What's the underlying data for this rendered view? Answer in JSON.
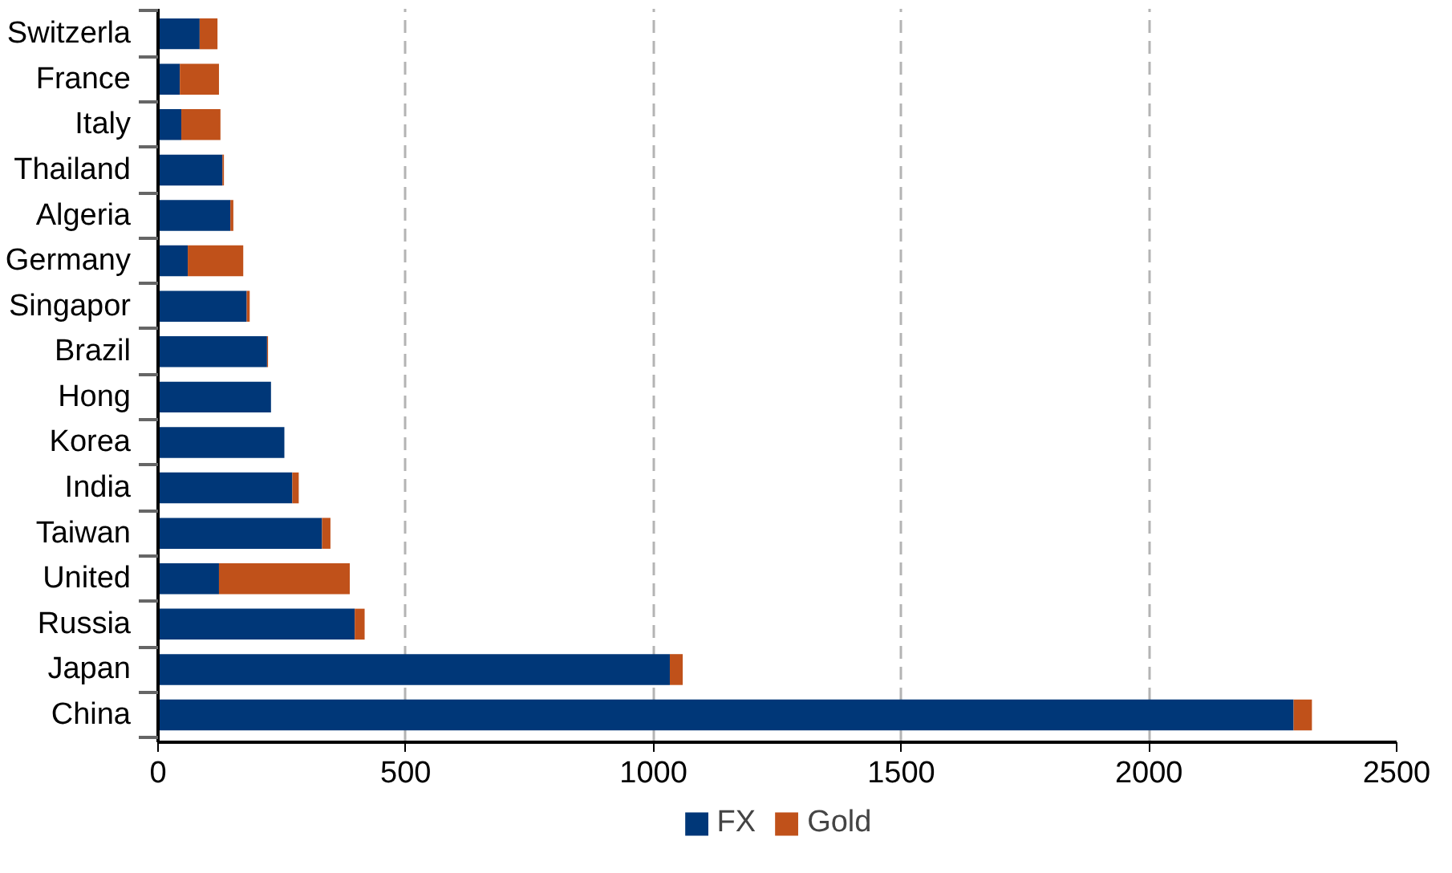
{
  "chart_data": {
    "type": "bar",
    "orientation": "horizontal",
    "stacked": true,
    "categories": [
      "Switzerla",
      "France",
      "Italy",
      "Thailand",
      "Algeria",
      "Germany",
      "Singapor",
      "Brazil",
      "Hong",
      "Korea",
      "India",
      "Taiwan",
      "United",
      "Russia",
      "Japan",
      "China"
    ],
    "series": [
      {
        "name": "FX",
        "color": "#003778",
        "values": [
          84,
          44,
          47,
          130,
          146,
          60,
          179,
          220,
          228,
          255,
          271,
          331,
          123,
          397,
          1033,
          2292
        ]
      },
      {
        "name": "Gold",
        "color": "#c0511a",
        "values": [
          36,
          79,
          79,
          3,
          6,
          112,
          6,
          2,
          0,
          0,
          13,
          17,
          264,
          20,
          26,
          37
        ]
      }
    ],
    "xlim": [
      0,
      2500
    ],
    "xticks": [
      0,
      500,
      1000,
      1500,
      2000,
      2500
    ],
    "grid": "x",
    "legend": "bottom"
  }
}
